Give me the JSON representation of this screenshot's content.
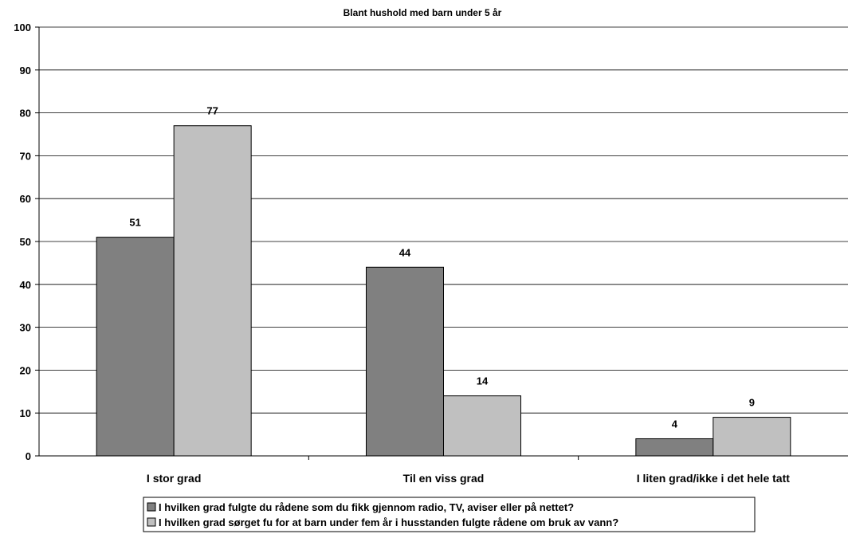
{
  "chart_data": {
    "type": "bar",
    "title": "Blant hushold med barn under 5 år",
    "xlabel": "",
    "ylabel": "",
    "ylim": [
      0,
      100
    ],
    "yticks": [
      0,
      10,
      20,
      30,
      40,
      50,
      60,
      70,
      80,
      90,
      100
    ],
    "grid": true,
    "legend_position": "bottom",
    "categories": [
      "I stor grad",
      "Til en viss grad",
      "I liten grad/ikke i det hele tatt"
    ],
    "series": [
      {
        "name": "I hvilken grad fulgte du rådene som du fikk gjennom radio, TV, aviser eller på nettet?",
        "color": "#808080",
        "values": [
          51,
          44,
          4
        ]
      },
      {
        "name": "I hvilken grad sørget fu for at barn under fem år i husstanden fulgte rådene om bruk av vann?",
        "color": "#c0c0c0",
        "values": [
          77,
          14,
          9
        ]
      }
    ]
  }
}
